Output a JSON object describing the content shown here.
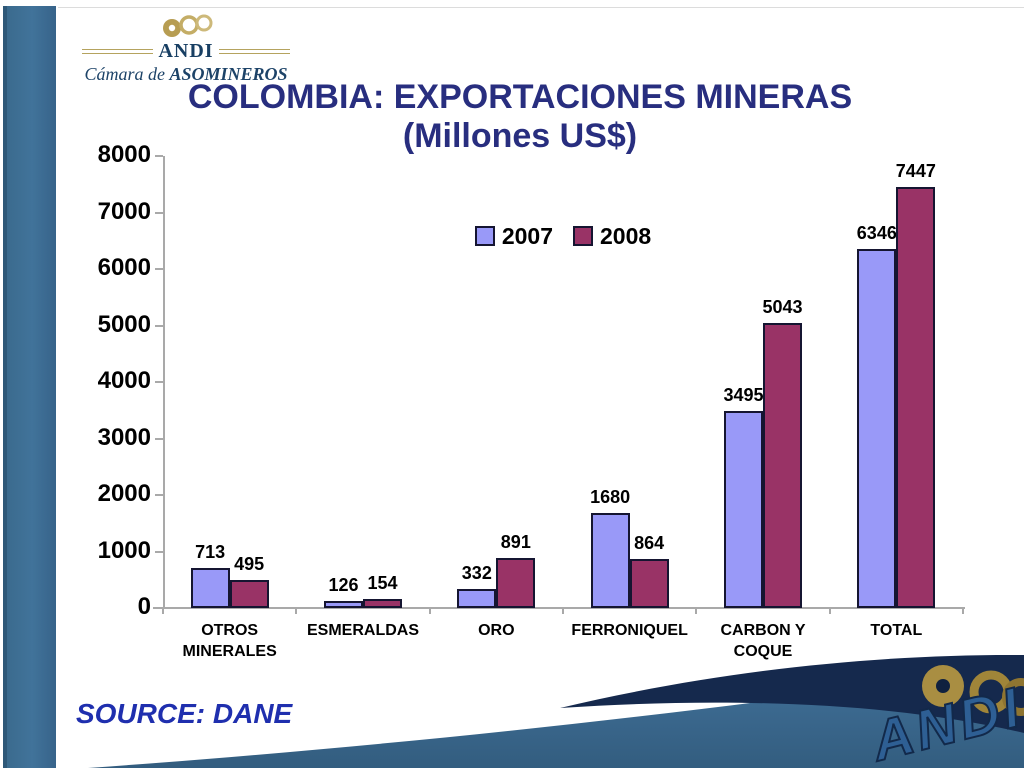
{
  "slide": {
    "logo": {
      "org": "ANDI",
      "suborg_prefix": "Cámara de",
      "suborg_name": "ASOMINEROS"
    },
    "title_line1": "COLOMBIA: EXPORTACIONES MINERAS",
    "title_line2": "(Millones US$)",
    "source": "SOURCE: DANE",
    "watermark": "ANDI"
  },
  "colors": {
    "series_2007": "#9999F8",
    "series_2008": "#993366",
    "bar_border": "#151531",
    "title_text": "#282E7F",
    "source_text": "#1F2FAE",
    "axis_line": "#A9A9A9",
    "left_band": "#3B6B8E",
    "bottom_band": "#3A688C",
    "swoosh_navy": "#15294D",
    "logo_gold": "#B5A35E",
    "logo_navy": "#1D4368"
  },
  "chart_data": {
    "type": "bar",
    "title": "COLOMBIA: EXPORTACIONES MINERAS (Millones US$)",
    "categories": [
      "OTROS MINERALES",
      "ESMERALDAS",
      "ORO",
      "FERRONIQUEL",
      "CARBON Y COQUE",
      "TOTAL"
    ],
    "series": [
      {
        "name": "2007",
        "color": "#9999F8",
        "values": [
          713,
          126,
          332,
          1680,
          3495,
          6346
        ]
      },
      {
        "name": "2008",
        "color": "#993366",
        "values": [
          495,
          154,
          891,
          864,
          5043,
          7447
        ]
      }
    ],
    "ylim": [
      0,
      8000
    ],
    "yticks": [
      0,
      1000,
      2000,
      3000,
      4000,
      5000,
      6000,
      7000,
      8000
    ],
    "grid": false,
    "legend_position": "top-center",
    "data_labels": true
  }
}
